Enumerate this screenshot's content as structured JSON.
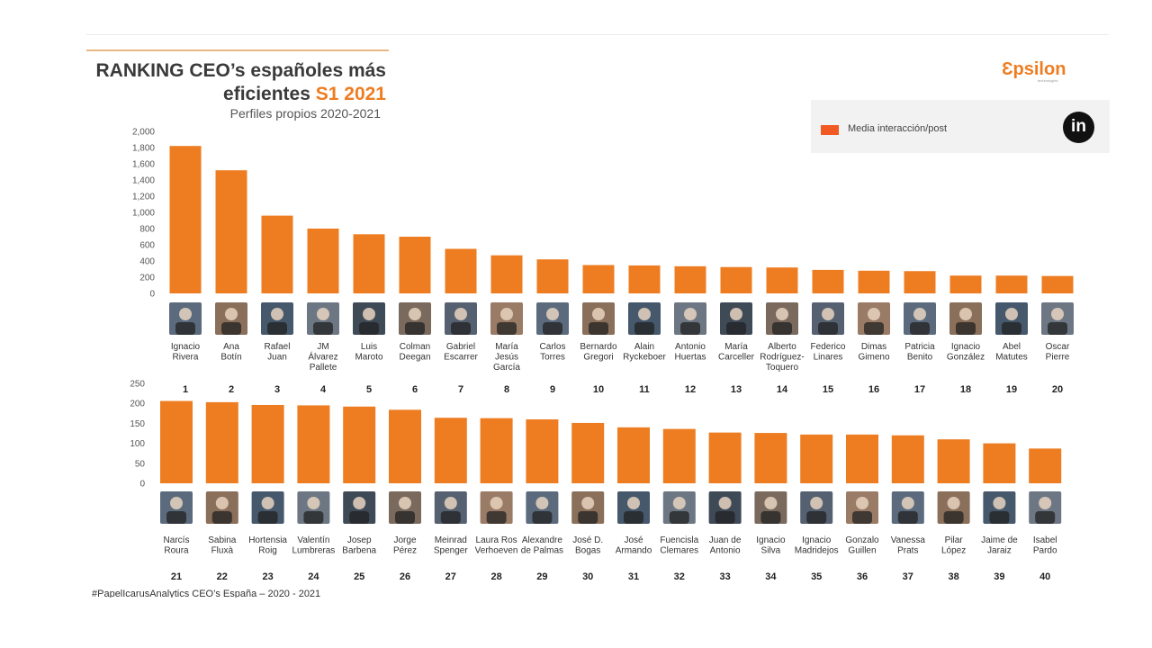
{
  "header": {
    "title_line1": "RANKING CEO’s españoles más",
    "title_line2_a": "eficientes ",
    "title_line2_b": "S1 2021",
    "subtitle": "Perfiles propios 2020-2021"
  },
  "logo": {
    "text": "Ɛpsilon",
    "sub": "technologies"
  },
  "legend": {
    "label": "Media interacción/post",
    "icon_text": "in",
    "icon_name": "linkedin-icon",
    "swatch_color": "#f15a22"
  },
  "footnote": "#PapelIcarusAnalytics CEO’s España – 2020 - 2021",
  "colors": {
    "bar": "#ee7d22",
    "accent": "#ee7d22"
  },
  "chart_data": [
    {
      "type": "bar",
      "title": "",
      "xlabel": "",
      "ylabel": "",
      "ylim": [
        0,
        2000
      ],
      "yticks": [
        "0",
        "200",
        "400",
        "600",
        "800",
        "1,000",
        "1,200",
        "1,400",
        "1,600",
        "1,800",
        "2,000"
      ],
      "grid": false,
      "categories": [
        "Ignacio Rivera",
        "Ana Botín",
        "Rafael Juan",
        "JM Álvarez Pallete",
        "Luis Maroto",
        "Colman Deegan",
        "Gabriel Escarrer",
        "María Jesús García",
        "Carlos Torres",
        "Bernardo Gregori",
        "Alain Ryckeboer",
        "Antonio Huertas",
        "María Carceller",
        "Alberto Rodríguez-Toquero",
        "Federico Linares",
        "Dimas Gimeno",
        "Patricia Benito",
        "Ignacio González",
        "Abel Matutes",
        "Oscar Pierre"
      ],
      "name_lines": [
        [
          "Ignacio",
          "Rivera"
        ],
        [
          "Ana",
          "Botín"
        ],
        [
          "Rafael",
          "Juan"
        ],
        [
          "JM",
          "Álvarez",
          "Pallete"
        ],
        [
          "Luis",
          "Maroto"
        ],
        [
          "Colman",
          "Deegan"
        ],
        [
          "Gabriel",
          "Escarrer"
        ],
        [
          "María",
          "Jesús",
          "García"
        ],
        [
          "Carlos",
          "Torres"
        ],
        [
          "Bernardo",
          "Gregori"
        ],
        [
          "Alain",
          "Ryckeboer"
        ],
        [
          "Antonio",
          "Huertas"
        ],
        [
          "María",
          "Carceller"
        ],
        [
          "Alberto",
          "Rodríguez-",
          "Toquero"
        ],
        [
          "Federico",
          "Linares"
        ],
        [
          "Dimas",
          "Gimeno"
        ],
        [
          "Patricia",
          "Benito"
        ],
        [
          "Ignacio",
          "González"
        ],
        [
          "Abel",
          "Matutes"
        ],
        [
          "Oscar",
          "Pierre"
        ]
      ],
      "ranks": [
        "1",
        "2",
        "3",
        "4",
        "5",
        "6",
        "7",
        "8",
        "9",
        "10",
        "11",
        "12",
        "13",
        "14",
        "15",
        "16",
        "17",
        "18",
        "19",
        "20"
      ],
      "values": [
        1820,
        1520,
        960,
        800,
        730,
        700,
        550,
        470,
        420,
        350,
        345,
        335,
        325,
        320,
        290,
        280,
        275,
        220,
        220,
        215
      ]
    },
    {
      "type": "bar",
      "title": "",
      "xlabel": "",
      "ylabel": "",
      "ylim": [
        0,
        250
      ],
      "yticks": [
        "0",
        "50",
        "100",
        "150",
        "200",
        "250"
      ],
      "grid": false,
      "categories": [
        "Narcís Roura",
        "Sabina Fluxà",
        "Hortensia Roig",
        "Valentín Lumbreras",
        "Josep Barbena",
        "Jorge Pérez",
        "Meinrad Spenger",
        "Laura Ros Verhoeven",
        "Alexandre de Palmas",
        "José D. Bogas",
        "José Armando",
        "Fuencisla Clemares",
        "Juan de Antonio",
        "Ignacio Silva",
        "Ignacio Madridejos",
        "Gonzalo Guillen",
        "Vanessa Prats",
        "Pilar López",
        "Jaime de Jaraiz",
        "Isabel Pardo"
      ],
      "name_lines": [
        [
          "Narcís",
          "Roura"
        ],
        [
          "Sabina",
          "Fluxà"
        ],
        [
          "Hortensia",
          "Roig"
        ],
        [
          "Valentín",
          "Lumbreras"
        ],
        [
          "Josep",
          "Barbena"
        ],
        [
          "Jorge",
          "Pérez"
        ],
        [
          "Meinrad",
          "Spenger"
        ],
        [
          "Laura Ros",
          "Verhoeven"
        ],
        [
          "Alexandre",
          "de Palmas"
        ],
        [
          "José D.",
          "Bogas"
        ],
        [
          "José",
          "Armando"
        ],
        [
          "Fuencisla",
          "Clemares"
        ],
        [
          "Juan de",
          "Antonio"
        ],
        [
          "Ignacio",
          "Silva"
        ],
        [
          "Ignacio",
          "Madridejos"
        ],
        [
          "Gonzalo",
          "Guillen"
        ],
        [
          "Vanessa",
          "Prats"
        ],
        [
          "Pilar",
          "López"
        ],
        [
          "Jaime de",
          "Jaraiz"
        ],
        [
          "Isabel",
          "Pardo"
        ]
      ],
      "ranks": [
        "21",
        "22",
        "23",
        "24",
        "25",
        "26",
        "27",
        "28",
        "29",
        "30",
        "31",
        "32",
        "33",
        "34",
        "35",
        "36",
        "37",
        "38",
        "39",
        "40"
      ],
      "values": [
        206,
        203,
        196,
        195,
        192,
        184,
        164,
        163,
        160,
        151,
        140,
        136,
        127,
        126,
        122,
        122,
        120,
        110,
        100,
        87
      ]
    }
  ]
}
